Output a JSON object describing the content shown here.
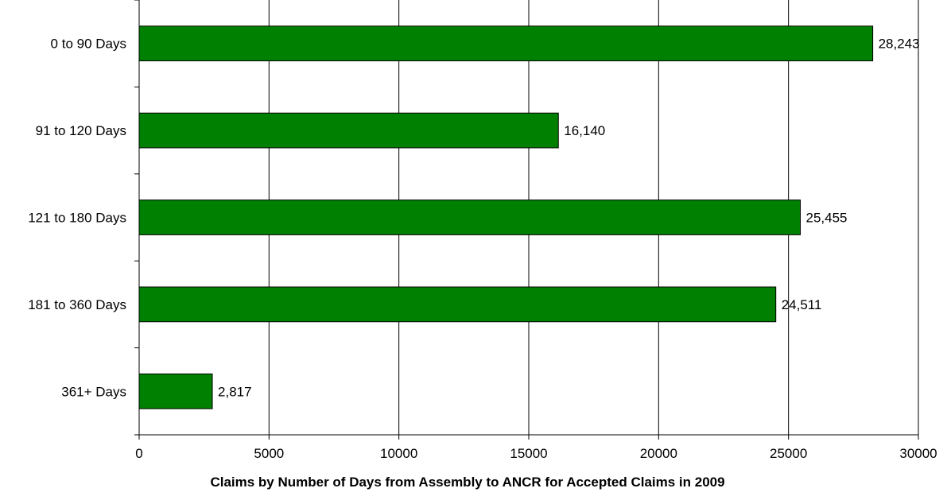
{
  "chart_data": {
    "type": "bar",
    "orientation": "horizontal",
    "categories": [
      "0 to 90 Days",
      "91 to 120 Days",
      "121 to 180 Days",
      "181 to 360 Days",
      "361+ Days"
    ],
    "values": [
      28243,
      16140,
      25455,
      24511,
      2817
    ],
    "data_labels": [
      "28,243",
      "16,140",
      "25,455",
      "24,511",
      "2,817"
    ],
    "xlabel": "Claims by Number of Days from Assembly to ANCR for Accepted Claims in 2009",
    "ylabel": "",
    "xlim": [
      0,
      30000
    ],
    "x_ticks": [
      0,
      5000,
      10000,
      15000,
      20000,
      25000,
      30000
    ],
    "x_tick_labels": [
      "0",
      "5000",
      "10000",
      "15000",
      "20000",
      "25000",
      "30000"
    ],
    "grid": true,
    "bar_color": "#008000",
    "legend": "none"
  }
}
